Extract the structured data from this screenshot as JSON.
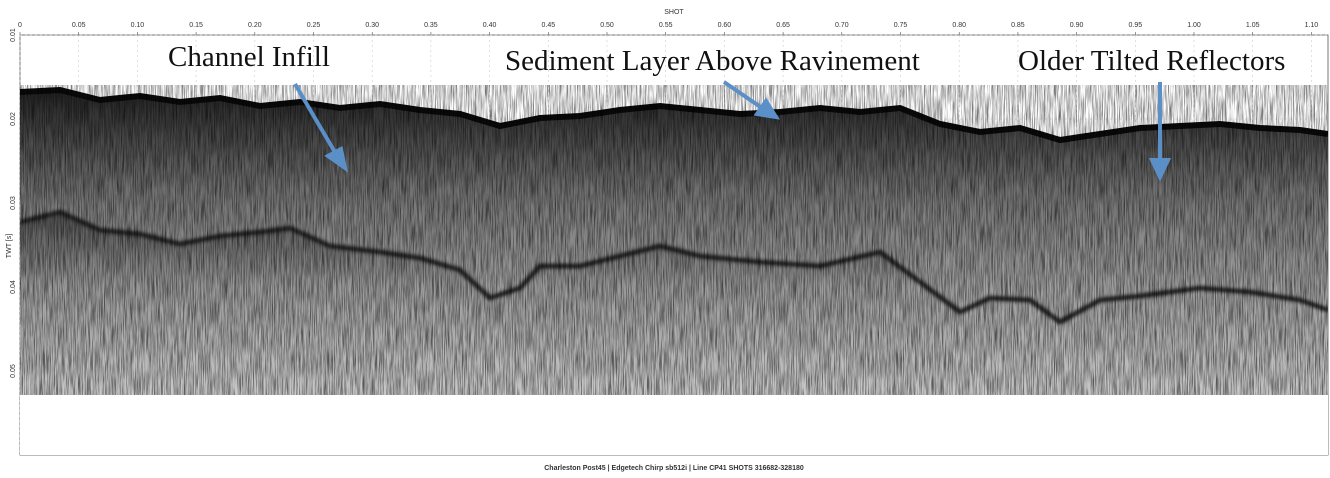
{
  "figure": {
    "x_axis_label": "SHOT",
    "x_ticks": [
      "0",
      "0.05",
      "0.10",
      "0.15",
      "0.20",
      "0.25",
      "0.30",
      "0.35",
      "0.40",
      "0.45",
      "0.50",
      "0.55",
      "0.60",
      "0.65",
      "0.70",
      "0.75",
      "0.80",
      "0.85",
      "0.90",
      "0.95",
      "1.00",
      "1.05",
      "1.10"
    ],
    "y_axis_label": "TWT [s]",
    "y_ticks": [
      "0.01",
      "0.02",
      "0.03",
      "0.04",
      "0.05"
    ],
    "annotations": [
      "Channel Infill",
      "Sediment Layer Above Ravinement",
      "Older Tilted Reflectors"
    ],
    "caption": "Charleston Post45 | Edgetech Chirp sb512i | Line CP41 SHOTS 316682-328180"
  }
}
